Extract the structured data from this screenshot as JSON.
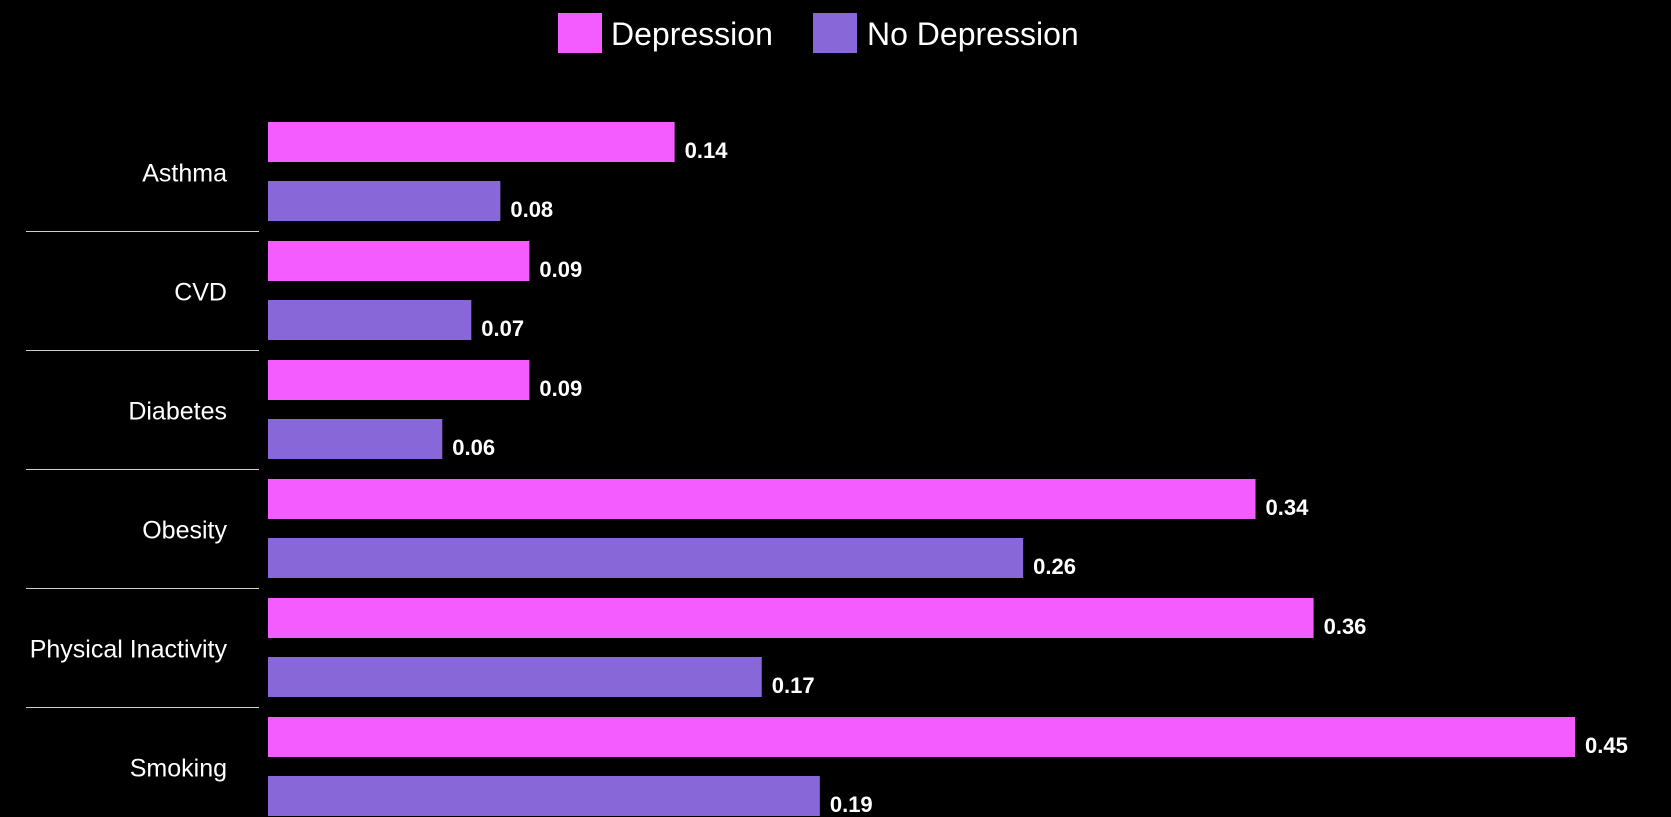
{
  "chart_data": {
    "type": "bar",
    "orientation": "horizontal",
    "title": "",
    "xlabel": "",
    "ylabel": "",
    "categories": [
      "Asthma",
      "CVD",
      "Diabetes",
      "Obesity",
      "Physical Inactivity",
      "Smoking"
    ],
    "series": [
      {
        "name": "Depression",
        "color": "#f55cff",
        "values": [
          0.14,
          0.09,
          0.09,
          0.34,
          0.36,
          0.45
        ]
      },
      {
        "name": "No Depression",
        "color": "#8868d8",
        "values": [
          0.08,
          0.07,
          0.06,
          0.26,
          0.17,
          0.19
        ]
      }
    ],
    "value_labels": [
      [
        "0.14",
        "0.09",
        "0.09",
        "0.34",
        "0.36",
        "0.45"
      ],
      [
        "0.08",
        "0.07",
        "0.06",
        "0.26",
        "0.17",
        "0.19"
      ]
    ],
    "xlim": [
      0,
      0.45
    ],
    "grid": false,
    "legend_position": "top-center",
    "background": "#000000"
  }
}
